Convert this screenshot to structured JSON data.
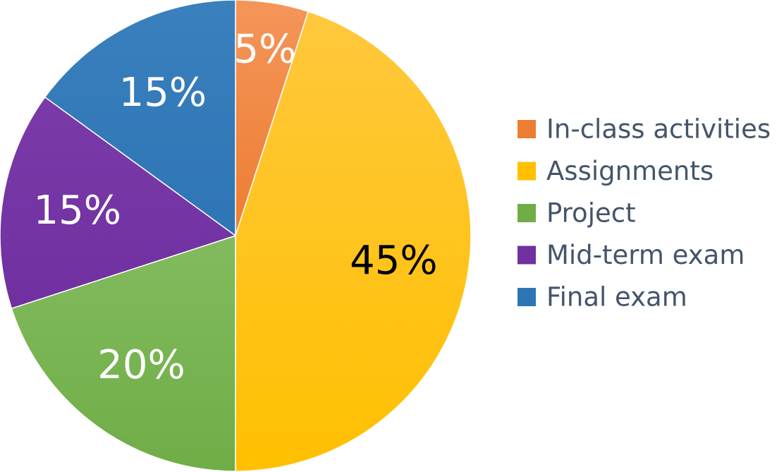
{
  "chart_data": {
    "type": "pie",
    "title": "",
    "legend_position": "right",
    "slices": [
      {
        "name": "In-class activities",
        "value": 5,
        "label": "5%",
        "color": "#ed7d31",
        "color_light": "#f4955a",
        "label_color": "#ffffff"
      },
      {
        "name": "Assignments",
        "value": 45,
        "label": "45%",
        "color": "#ffc000",
        "color_light": "#ffc83d",
        "label_color": "#000000"
      },
      {
        "name": "Project",
        "value": 20,
        "label": "20%",
        "color": "#70ad47",
        "color_light": "#82bb5e",
        "label_color": "#ffffff"
      },
      {
        "name": "Mid-term exam",
        "value": 15,
        "label": "15%",
        "color": "#7030a0",
        "color_light": "#7a3aa8",
        "label_color": "#ffffff"
      },
      {
        "name": "Final exam",
        "value": 15,
        "label": "15%",
        "color": "#2e75b6",
        "color_light": "#3a80bd",
        "label_color": "#ffffff"
      }
    ]
  }
}
